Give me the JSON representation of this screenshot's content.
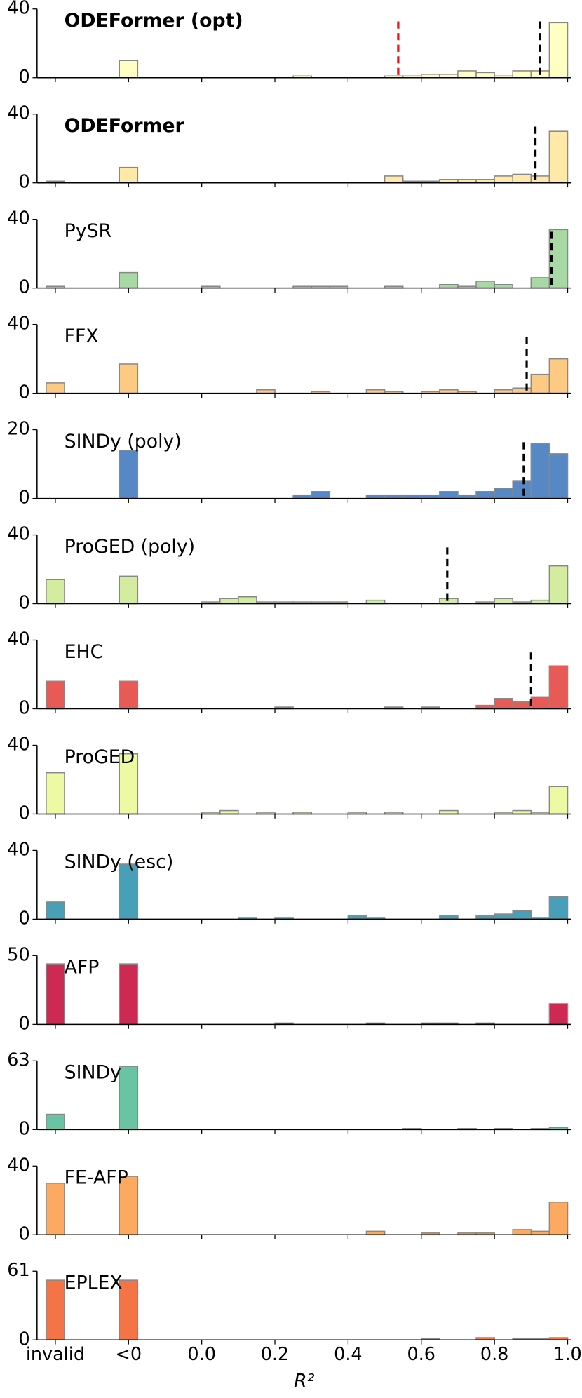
{
  "chart_data": [
    {
      "type": "histogram",
      "title": "ODEFormer (opt)",
      "bold": true,
      "color": "#ffffc4",
      "xlim": [
        -0.45,
        1.01
      ],
      "ylim": [
        0,
        40
      ],
      "yticks": [
        0,
        40
      ],
      "invalid": 0,
      "negative": 10,
      "bins": [
        0,
        0.05,
        0.1,
        0.15,
        0.2,
        0.25,
        0.3,
        0.35,
        0.4,
        0.45,
        0.5,
        0.55,
        0.6,
        0.65,
        0.7,
        0.75,
        0.8,
        0.85,
        0.9,
        0.95,
        1
      ],
      "counts": [
        0,
        0,
        0,
        0,
        0,
        1,
        0,
        0,
        0,
        0,
        1,
        1,
        2,
        2,
        4,
        3,
        1,
        4,
        4,
        32
      ],
      "median": 0.925,
      "reference_line": 0.537,
      "reference_color": "#ee1111"
    },
    {
      "type": "histogram",
      "title": "ODEFormer",
      "bold": true,
      "color": "#fee9a8",
      "xlim": [
        -0.45,
        1.01
      ],
      "ylim": [
        0,
        40
      ],
      "yticks": [
        0,
        40
      ],
      "invalid": 1,
      "negative": 9,
      "bins": [
        0,
        0.05,
        0.1,
        0.15,
        0.2,
        0.25,
        0.3,
        0.35,
        0.4,
        0.45,
        0.5,
        0.55,
        0.6,
        0.65,
        0.7,
        0.75,
        0.8,
        0.85,
        0.9,
        0.95,
        1
      ],
      "counts": [
        0,
        0,
        0,
        0,
        0,
        0,
        0,
        0,
        0,
        0,
        4,
        1,
        1,
        2,
        2,
        2,
        4,
        5,
        4,
        30
      ],
      "median": 0.912
    },
    {
      "type": "histogram",
      "title": "PySR",
      "bold": false,
      "color": "#a8d9a4",
      "xlim": [
        -0.45,
        1.01
      ],
      "ylim": [
        0,
        40
      ],
      "yticks": [
        0,
        40
      ],
      "invalid": 1,
      "negative": 9,
      "bins": [
        0,
        0.05,
        0.1,
        0.15,
        0.2,
        0.25,
        0.3,
        0.35,
        0.4,
        0.45,
        0.5,
        0.55,
        0.6,
        0.65,
        0.7,
        0.75,
        0.8,
        0.85,
        0.9,
        0.95,
        1
      ],
      "counts": [
        1,
        0,
        0,
        0,
        0,
        1,
        1,
        1,
        0,
        0,
        1,
        0,
        0,
        2,
        1,
        4,
        2,
        0,
        6,
        34
      ],
      "median": 0.956
    },
    {
      "type": "histogram",
      "title": "FFX",
      "bold": false,
      "color": "#fdca84",
      "xlim": [
        -0.45,
        1.01
      ],
      "ylim": [
        0,
        40
      ],
      "yticks": [
        0,
        40
      ],
      "invalid": 6,
      "negative": 17,
      "bins": [
        0,
        0.05,
        0.1,
        0.15,
        0.2,
        0.25,
        0.3,
        0.35,
        0.4,
        0.45,
        0.5,
        0.55,
        0.6,
        0.65,
        0.7,
        0.75,
        0.8,
        0.85,
        0.9,
        0.95,
        1
      ],
      "counts": [
        0,
        0,
        0,
        2,
        0,
        0,
        1,
        0,
        0,
        2,
        1,
        0,
        1,
        2,
        1,
        0,
        2,
        3,
        11,
        20
      ],
      "median": 0.888
    },
    {
      "type": "histogram",
      "title": "SINDy (poly)",
      "bold": false,
      "color": "#5588c4",
      "xlim": [
        -0.45,
        1.01
      ],
      "ylim": [
        0,
        20
      ],
      "yticks": [
        0,
        20
      ],
      "invalid": 0,
      "negative": 14,
      "bins": [
        0,
        0.05,
        0.1,
        0.15,
        0.2,
        0.25,
        0.3,
        0.35,
        0.4,
        0.45,
        0.5,
        0.55,
        0.6,
        0.65,
        0.7,
        0.75,
        0.8,
        0.85,
        0.9,
        0.95,
        1
      ],
      "counts": [
        0,
        0,
        0,
        0,
        0,
        1,
        2,
        0,
        0,
        1,
        1,
        1,
        1,
        2,
        1,
        2,
        3,
        5,
        16,
        13
      ],
      "median": 0.88
    },
    {
      "type": "histogram",
      "title": "ProGED (poly)",
      "bold": false,
      "color": "#d3eca0",
      "xlim": [
        -0.45,
        1.01
      ],
      "ylim": [
        0,
        40
      ],
      "yticks": [
        0,
        40
      ],
      "invalid": 14,
      "negative": 16,
      "bins": [
        0,
        0.05,
        0.1,
        0.15,
        0.2,
        0.25,
        0.3,
        0.35,
        0.4,
        0.45,
        0.5,
        0.55,
        0.6,
        0.65,
        0.7,
        0.75,
        0.8,
        0.85,
        0.9,
        0.95,
        1
      ],
      "counts": [
        1,
        3,
        4,
        1,
        1,
        1,
        1,
        1,
        0,
        2,
        0,
        0,
        0,
        3,
        0,
        1,
        3,
        1,
        2,
        22
      ],
      "median": 0.671
    },
    {
      "type": "histogram",
      "title": "EHC",
      "bold": false,
      "color": "#e85a55",
      "xlim": [
        -0.45,
        1.01
      ],
      "ylim": [
        0,
        40
      ],
      "yticks": [
        0,
        40
      ],
      "invalid": 16,
      "negative": 16,
      "bins": [
        0,
        0.05,
        0.1,
        0.15,
        0.2,
        0.25,
        0.3,
        0.35,
        0.4,
        0.45,
        0.5,
        0.55,
        0.6,
        0.65,
        0.7,
        0.75,
        0.8,
        0.85,
        0.9,
        0.95,
        1
      ],
      "counts": [
        0,
        0,
        0,
        0,
        1,
        0,
        0,
        0,
        0,
        0,
        1,
        0,
        1,
        0,
        0,
        2,
        6,
        4,
        7,
        25
      ],
      "median": 0.9
    },
    {
      "type": "histogram",
      "title": "ProGED",
      "bold": false,
      "color": "#eef9a4",
      "xlim": [
        -0.45,
        1.01
      ],
      "ylim": [
        0,
        40
      ],
      "yticks": [
        0,
        40
      ],
      "invalid": 24,
      "negative": 35,
      "bins": [
        0,
        0.05,
        0.1,
        0.15,
        0.2,
        0.25,
        0.3,
        0.35,
        0.4,
        0.45,
        0.5,
        0.55,
        0.6,
        0.65,
        0.7,
        0.75,
        0.8,
        0.85,
        0.9,
        0.95,
        1
      ],
      "counts": [
        1,
        2,
        0,
        1,
        0,
        1,
        0,
        0,
        1,
        0,
        1,
        0,
        0,
        2,
        0,
        0,
        1,
        2,
        1,
        16
      ]
    },
    {
      "type": "histogram",
      "title": "SINDy (esc)",
      "bold": false,
      "color": "#47a0b8",
      "xlim": [
        -0.45,
        1.01
      ],
      "ylim": [
        0,
        40
      ],
      "yticks": [
        0,
        40
      ],
      "invalid": 10,
      "negative": 32,
      "bins": [
        0,
        0.05,
        0.1,
        0.15,
        0.2,
        0.25,
        0.3,
        0.35,
        0.4,
        0.45,
        0.5,
        0.55,
        0.6,
        0.65,
        0.7,
        0.75,
        0.8,
        0.85,
        0.9,
        0.95,
        1
      ],
      "counts": [
        0,
        0,
        1,
        0,
        1,
        0,
        0,
        0,
        2,
        1,
        0,
        0,
        0,
        2,
        0,
        2,
        3,
        5,
        1,
        13
      ]
    },
    {
      "type": "histogram",
      "title": "AFP",
      "bold": false,
      "color": "#cc2a52",
      "xlim": [
        -0.45,
        1.01
      ],
      "ylim": [
        0,
        50
      ],
      "yticks": [
        0,
        50
      ],
      "invalid": 44,
      "negative": 44,
      "bins": [
        0,
        0.05,
        0.1,
        0.15,
        0.2,
        0.25,
        0.3,
        0.35,
        0.4,
        0.45,
        0.5,
        0.55,
        0.6,
        0.65,
        0.7,
        0.75,
        0.8,
        0.85,
        0.9,
        0.95,
        1
      ],
      "counts": [
        0,
        0,
        0,
        0,
        1,
        0,
        0,
        0,
        0,
        1,
        0,
        0,
        1,
        1,
        0,
        1,
        0,
        0,
        0,
        15
      ]
    },
    {
      "type": "histogram",
      "title": "SINDy",
      "bold": false,
      "color": "#68c4a2",
      "xlim": [
        -0.45,
        1.01
      ],
      "ylim": [
        0,
        63
      ],
      "yticks": [
        0,
        63
      ],
      "invalid": 14,
      "negative": 58,
      "bins": [
        0,
        0.05,
        0.1,
        0.15,
        0.2,
        0.25,
        0.3,
        0.35,
        0.4,
        0.45,
        0.5,
        0.55,
        0.6,
        0.65,
        0.7,
        0.75,
        0.8,
        0.85,
        0.9,
        0.95,
        1
      ],
      "counts": [
        0,
        0,
        0,
        0,
        0,
        0,
        0,
        0,
        0,
        0,
        0,
        1,
        0,
        0,
        1,
        0,
        1,
        0,
        1,
        2
      ]
    },
    {
      "type": "histogram",
      "title": "FE-AFP",
      "bold": false,
      "color": "#fcaa62",
      "xlim": [
        -0.45,
        1.01
      ],
      "ylim": [
        0,
        40
      ],
      "yticks": [
        0,
        40
      ],
      "invalid": 30,
      "negative": 34,
      "bins": [
        0,
        0.05,
        0.1,
        0.15,
        0.2,
        0.25,
        0.3,
        0.35,
        0.4,
        0.45,
        0.5,
        0.55,
        0.6,
        0.65,
        0.7,
        0.75,
        0.8,
        0.85,
        0.9,
        0.95,
        1
      ],
      "counts": [
        0,
        0,
        0,
        0,
        0,
        0,
        0,
        0,
        0,
        2,
        0,
        0,
        1,
        0,
        1,
        1,
        0,
        3,
        2,
        19
      ]
    },
    {
      "type": "histogram",
      "title": "EPLEX",
      "bold": false,
      "color": "#f47445",
      "xlim": [
        -0.45,
        1.01
      ],
      "ylim": [
        0,
        61
      ],
      "yticks": [
        0,
        61
      ],
      "invalid": 53,
      "negative": 53,
      "bins": [
        0,
        0.05,
        0.1,
        0.15,
        0.2,
        0.25,
        0.3,
        0.35,
        0.4,
        0.45,
        0.5,
        0.55,
        0.6,
        0.65,
        0.7,
        0.75,
        0.8,
        0.85,
        0.9,
        0.95,
        1
      ],
      "counts": [
        0,
        0,
        0,
        0,
        0,
        0,
        0,
        0,
        0,
        0,
        0,
        0,
        1,
        0,
        0,
        2,
        0,
        1,
        1,
        2
      ],
      "xlabel": "R²",
      "xticks": [
        {
          "value": -0.4,
          "label": "invalid"
        },
        {
          "value": -0.2,
          "label": "<0"
        },
        {
          "value": 0,
          "label": "0.0"
        },
        0.2,
        0.4,
        0.6,
        0.8,
        {
          "value": 1,
          "label": "1.0"
        }
      ]
    }
  ]
}
